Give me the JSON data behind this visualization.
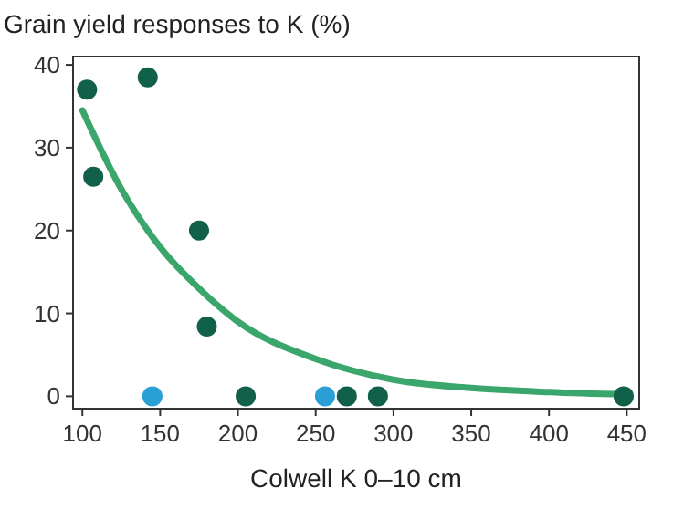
{
  "chart_data": {
    "type": "scatter",
    "ylabel": "Grain yield responses to K (%)",
    "xlabel": "Colwell K 0–10 cm",
    "xlim": [
      94,
      458
    ],
    "ylim": [
      -1.5,
      41
    ],
    "xticks": [
      100,
      150,
      200,
      250,
      300,
      350,
      400,
      450
    ],
    "yticks": [
      0,
      10,
      20,
      30,
      40
    ],
    "grid": false,
    "series": [
      {
        "type": "line",
        "color": "#3aa66b",
        "x": [
          100,
          125,
          150,
          175,
          200,
          250,
          300,
          350,
          400,
          450
        ],
        "values": [
          34.5,
          25,
          18,
          13,
          9,
          4.5,
          2,
          1,
          0.5,
          0.2
        ]
      },
      {
        "color": "#11604a",
        "marker": "circle",
        "x": [
          103,
          107,
          142,
          175,
          180,
          205,
          270,
          290,
          448
        ],
        "values": [
          37,
          26.5,
          38.5,
          20,
          8.4,
          0,
          0,
          0,
          0
        ]
      },
      {
        "color": "#2a9fd6",
        "marker": "circle",
        "x": [
          145,
          256
        ],
        "values": [
          0,
          0
        ]
      }
    ]
  }
}
